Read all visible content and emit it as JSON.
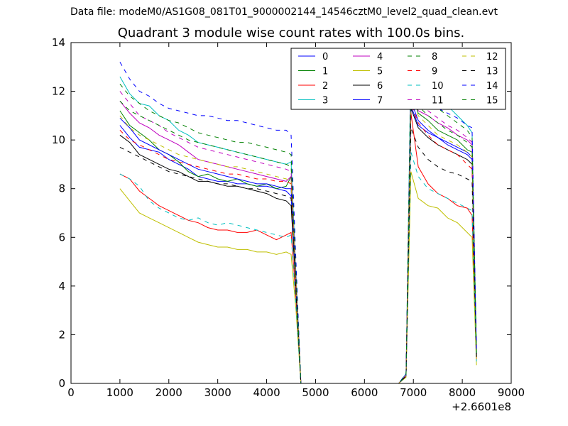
{
  "suptitle": "Data file: modeM0/AS1G08_081T01_9000002144_14546cztM0_level2_quad_clean.evt",
  "chart_data": {
    "type": "line",
    "title": "Quadrant 3 module wise count rates with 100.0s bins.",
    "xlabel": "",
    "ylabel": "",
    "x_offset_label": "+2.6601e8",
    "xlim": [
      0,
      9000
    ],
    "ylim": [
      0,
      14
    ],
    "xticks": [
      0,
      1000,
      2000,
      3000,
      4000,
      5000,
      6000,
      7000,
      8000,
      9000
    ],
    "yticks": [
      0,
      2,
      4,
      6,
      8,
      10,
      12,
      14
    ],
    "legend_position": "top-right",
    "legend_columns": 4,
    "x": [
      1000,
      1200,
      1400,
      1600,
      1800,
      2000,
      2200,
      2400,
      2600,
      2800,
      3000,
      3200,
      3400,
      3600,
      3800,
      4000,
      4200,
      4400,
      4500,
      4600,
      4700,
      6700,
      6850,
      6950,
      7100,
      7300,
      7500,
      7700,
      7900,
      8100,
      8200,
      8290
    ],
    "series": [
      {
        "name": "0",
        "color": "#0000ff",
        "dash": "solid",
        "values": [
          10.6,
          10.1,
          9.7,
          9.6,
          9.5,
          9.2,
          9.0,
          8.8,
          8.5,
          8.4,
          8.3,
          8.3,
          8.2,
          8.2,
          8.1,
          8.1,
          8.0,
          7.9,
          7.7,
          4.0,
          0.0,
          0.0,
          0.3,
          11.4,
          10.6,
          10.3,
          10.1,
          9.8,
          9.6,
          9.4,
          9.2,
          1.2
        ]
      },
      {
        "name": "1",
        "color": "#008000",
        "dash": "solid",
        "values": [
          11.2,
          10.6,
          10.3,
          10.0,
          9.6,
          9.4,
          9.1,
          8.7,
          8.5,
          8.6,
          8.4,
          8.3,
          8.4,
          8.2,
          8.1,
          8.2,
          8.0,
          8.1,
          8.5,
          4.1,
          0.0,
          0.0,
          0.35,
          12.0,
          11.1,
          10.8,
          10.4,
          10.2,
          10.0,
          9.6,
          9.5,
          1.1
        ]
      },
      {
        "name": "2",
        "color": "#ff0000",
        "dash": "solid",
        "values": [
          8.6,
          8.4,
          7.9,
          7.6,
          7.3,
          7.1,
          6.9,
          6.7,
          6.6,
          6.4,
          6.3,
          6.3,
          6.2,
          6.2,
          6.3,
          6.1,
          5.9,
          6.1,
          6.2,
          3.5,
          0.0,
          0.0,
          0.3,
          11.1,
          8.9,
          8.2,
          7.8,
          7.6,
          7.3,
          7.2,
          6.9,
          1.0
        ]
      },
      {
        "name": "3",
        "color": "#00bfbf",
        "dash": "solid",
        "values": [
          12.6,
          11.9,
          11.5,
          11.4,
          11.0,
          10.8,
          10.4,
          10.2,
          9.9,
          9.8,
          9.7,
          9.6,
          9.5,
          9.4,
          9.3,
          9.2,
          9.1,
          9.0,
          9.1,
          4.5,
          0.0,
          0.0,
          0.4,
          13.4,
          12.6,
          12.2,
          11.6,
          11.4,
          11.0,
          10.6,
          10.3,
          1.3
        ]
      },
      {
        "name": "4",
        "color": "#bf00bf",
        "dash": "solid",
        "values": [
          11.6,
          11.1,
          10.7,
          10.5,
          10.2,
          10.0,
          9.8,
          9.5,
          9.2,
          9.1,
          9.0,
          8.9,
          8.8,
          8.7,
          8.6,
          8.5,
          8.4,
          8.3,
          8.5,
          4.2,
          0.0,
          0.0,
          0.35,
          12.1,
          11.2,
          11.0,
          10.7,
          10.5,
          10.2,
          10.0,
          9.8,
          1.2
        ]
      },
      {
        "name": "5",
        "color": "#bfbf00",
        "dash": "solid",
        "values": [
          8.0,
          7.5,
          7.0,
          6.8,
          6.6,
          6.4,
          6.2,
          6.0,
          5.8,
          5.7,
          5.6,
          5.6,
          5.5,
          5.5,
          5.4,
          5.4,
          5.3,
          5.4,
          5.3,
          3.0,
          0.0,
          0.0,
          0.25,
          8.7,
          7.6,
          7.3,
          7.2,
          6.8,
          6.6,
          6.2,
          6.0,
          0.75
        ]
      },
      {
        "name": "6",
        "color": "#000000",
        "dash": "solid",
        "values": [
          10.2,
          9.9,
          9.4,
          9.2,
          9.0,
          8.8,
          8.7,
          8.5,
          8.3,
          8.3,
          8.2,
          8.1,
          8.1,
          8.0,
          7.9,
          7.8,
          7.6,
          7.5,
          7.3,
          3.8,
          0.0,
          0.0,
          0.3,
          11.3,
          10.5,
          10.1,
          9.8,
          9.6,
          9.4,
          9.2,
          9.0,
          1.1
        ]
      },
      {
        "name": "7",
        "color": "#0000ff",
        "dash": "solid",
        "values": [
          10.9,
          10.5,
          10.0,
          9.8,
          9.6,
          9.4,
          9.2,
          9.0,
          8.8,
          8.7,
          8.6,
          8.5,
          8.4,
          8.3,
          8.2,
          8.2,
          8.1,
          8.0,
          8.0,
          4.0,
          0.0,
          0.0,
          0.3,
          11.6,
          10.8,
          10.4,
          10.1,
          9.9,
          9.7,
          9.5,
          9.3,
          1.2
        ]
      },
      {
        "name": "8",
        "color": "#008000",
        "dash": "dashed",
        "values": [
          12.3,
          11.8,
          11.5,
          11.2,
          11.0,
          10.8,
          10.7,
          10.5,
          10.3,
          10.2,
          10.1,
          10.0,
          9.9,
          9.9,
          9.8,
          9.7,
          9.6,
          9.5,
          9.4,
          4.6,
          0.0,
          0.0,
          0.4,
          13.1,
          12.0,
          11.6,
          11.3,
          11.0,
          10.7,
          10.4,
          10.1,
          1.3
        ]
      },
      {
        "name": "9",
        "color": "#ff0000",
        "dash": "dashed",
        "values": [
          10.4,
          10.0,
          9.8,
          9.6,
          9.4,
          9.2,
          9.1,
          9.0,
          8.9,
          8.8,
          8.7,
          8.6,
          8.6,
          8.5,
          8.4,
          8.4,
          8.3,
          8.3,
          8.2,
          4.1,
          0.0,
          0.0,
          0.3,
          11.5,
          10.7,
          10.2,
          9.8,
          9.6,
          9.4,
          9.0,
          8.8,
          1.1
        ]
      },
      {
        "name": "10",
        "color": "#00bfbf",
        "dash": "dashed",
        "values": [
          8.6,
          8.4,
          8.1,
          7.5,
          7.2,
          7.0,
          6.8,
          6.7,
          6.8,
          6.6,
          6.5,
          6.6,
          6.5,
          6.4,
          6.3,
          6.2,
          6.1,
          6.0,
          6.1,
          3.2,
          0.0,
          0.0,
          0.3,
          9.5,
          8.5,
          8.0,
          7.8,
          7.6,
          7.4,
          7.2,
          7.1,
          0.9
        ]
      },
      {
        "name": "11",
        "color": "#bf00bf",
        "dash": "dashed",
        "values": [
          12.0,
          11.5,
          11.0,
          10.8,
          10.6,
          10.3,
          10.1,
          9.9,
          9.7,
          9.6,
          9.5,
          9.4,
          9.3,
          9.2,
          9.1,
          9.0,
          8.9,
          8.8,
          8.7,
          4.3,
          0.0,
          0.0,
          0.35,
          12.4,
          11.5,
          11.2,
          10.9,
          10.6,
          10.4,
          10.1,
          9.9,
          1.2
        ]
      },
      {
        "name": "12",
        "color": "#bfbf00",
        "dash": "dashed",
        "values": [
          11.0,
          10.5,
          10.2,
          10.0,
          9.8,
          9.6,
          9.4,
          9.3,
          9.2,
          9.1,
          9.0,
          8.9,
          8.9,
          8.8,
          8.7,
          8.6,
          8.5,
          8.4,
          8.3,
          4.1,
          0.0,
          0.0,
          0.3,
          11.9,
          11.0,
          10.6,
          10.2,
          10.0,
          9.8,
          9.5,
          9.3,
          1.1
        ]
      },
      {
        "name": "13",
        "color": "#000000",
        "dash": "dashed",
        "values": [
          9.7,
          9.5,
          9.3,
          9.1,
          8.9,
          8.7,
          8.6,
          8.5,
          8.4,
          8.3,
          8.2,
          8.2,
          8.1,
          8.0,
          8.0,
          7.9,
          7.8,
          7.7,
          7.6,
          3.8,
          0.0,
          0.0,
          0.3,
          10.5,
          9.7,
          9.2,
          8.9,
          8.7,
          8.6,
          8.4,
          8.3,
          1.0
        ]
      },
      {
        "name": "14",
        "color": "#0000ff",
        "dash": "dashed",
        "values": [
          13.2,
          12.5,
          12.0,
          11.8,
          11.5,
          11.3,
          11.2,
          11.1,
          11.0,
          11.0,
          10.9,
          10.8,
          10.8,
          10.7,
          10.6,
          10.5,
          10.4,
          10.4,
          10.2,
          5.0,
          0.0,
          0.0,
          0.4,
          12.6,
          12.2,
          11.7,
          11.3,
          11.1,
          10.9,
          10.6,
          10.5,
          1.3
        ]
      },
      {
        "name": "15",
        "color": "#008000",
        "dash": "dashed",
        "values": [
          11.6,
          11.2,
          11.0,
          10.8,
          10.6,
          10.4,
          10.2,
          10.0,
          9.9,
          9.8,
          9.7,
          9.6,
          9.5,
          9.4,
          9.3,
          9.2,
          9.1,
          9.0,
          8.9,
          4.4,
          0.0,
          0.0,
          0.35,
          12.2,
          11.4,
          11.0,
          10.7,
          10.4,
          10.2,
          9.9,
          9.7,
          1.2
        ]
      }
    ]
  }
}
